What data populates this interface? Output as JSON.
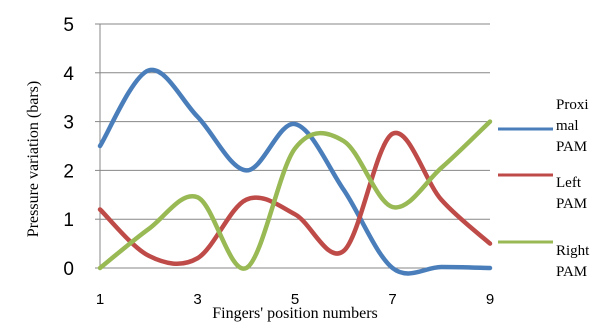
{
  "chart_data": {
    "type": "line",
    "title": "",
    "xlabel": "Fingers' position numbers",
    "ylabel": "Pressure variation (bars)",
    "xlim": [
      1,
      9
    ],
    "ylim": [
      0,
      5
    ],
    "x_ticks": [
      1,
      3,
      5,
      7,
      9
    ],
    "y_ticks": [
      0,
      1,
      2,
      3,
      4,
      5
    ],
    "grid": "horizontal",
    "legend_position": "right",
    "x": [
      1,
      2,
      3,
      4,
      5,
      6,
      7,
      8,
      9
    ],
    "series": [
      {
        "name_lines": [
          "Proxi",
          "mal",
          "PAM"
        ],
        "color": "#4a7ebb",
        "values": [
          2.5,
          4.05,
          3.1,
          2.0,
          2.95,
          1.6,
          0.0,
          0.02,
          0.0
        ]
      },
      {
        "name_lines": [
          "Left",
          "PAM"
        ],
        "color": "#be4b48",
        "values": [
          1.2,
          0.25,
          0.2,
          1.4,
          1.1,
          0.35,
          2.75,
          1.4,
          0.5
        ]
      },
      {
        "name_lines": [
          "Right",
          "PAM"
        ],
        "color": "#98b954",
        "values": [
          0.0,
          0.8,
          1.45,
          0.0,
          2.45,
          2.6,
          1.25,
          2.05,
          3.0
        ]
      }
    ]
  }
}
